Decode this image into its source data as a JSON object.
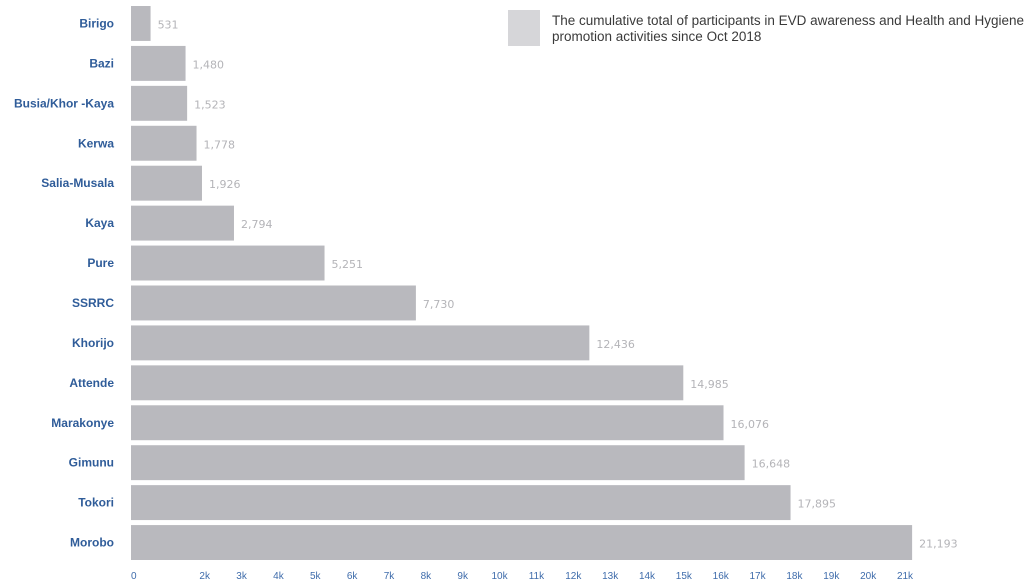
{
  "chart_data": {
    "type": "bar",
    "orientation": "horizontal",
    "categories": [
      "Birigo",
      "Bazi",
      "Busia/Khor -Kaya",
      "Kerwa",
      "Salia-Musala",
      "Kaya",
      "Pure",
      "SSRRC",
      "Khorijo",
      "Attende",
      "Marakonye",
      "Gimunu",
      "Tokori",
      "Morobo"
    ],
    "series": [
      {
        "name": "The cumulative total of participants in EVD awareness and Health and Hygiene promotion activities since Oct 2018",
        "values": [
          531,
          1480,
          1523,
          1778,
          1926,
          2794,
          5251,
          7730,
          12436,
          14985,
          16076,
          16648,
          17895,
          21193
        ],
        "value_labels": [
          "531",
          "1,480",
          "1,523",
          "1,778",
          "1,926",
          "2,794",
          "5,251",
          "7,730",
          "12,436",
          "14,985",
          "16,076",
          "16,648",
          "17,895",
          "21,193"
        ]
      }
    ],
    "x_ticks": [
      0,
      2000,
      3000,
      4000,
      5000,
      6000,
      7000,
      8000,
      9000,
      10000,
      11000,
      12000,
      13000,
      14000,
      15000,
      16000,
      17000,
      18000,
      19000,
      20000,
      21000
    ],
    "x_tick_labels": [
      "0",
      "2k",
      "3k",
      "4k",
      "5k",
      "6k",
      "7k",
      "8k",
      "9k",
      "10k",
      "11k",
      "12k",
      "13k",
      "14k",
      "15k",
      "16k",
      "17k",
      "18k",
      "19k",
      "20k",
      "21k"
    ],
    "xlim": [
      0,
      21000
    ],
    "title": "",
    "xlabel": "",
    "ylabel": "",
    "grid": false,
    "legend_position": "top-right",
    "colors": {
      "bar": "#b9b9be",
      "legend_swatch": "#d6d6d9",
      "category_label": "#2f5c99",
      "value_label": "#b4b4b8",
      "tick_label": "#3f6cab"
    }
  }
}
